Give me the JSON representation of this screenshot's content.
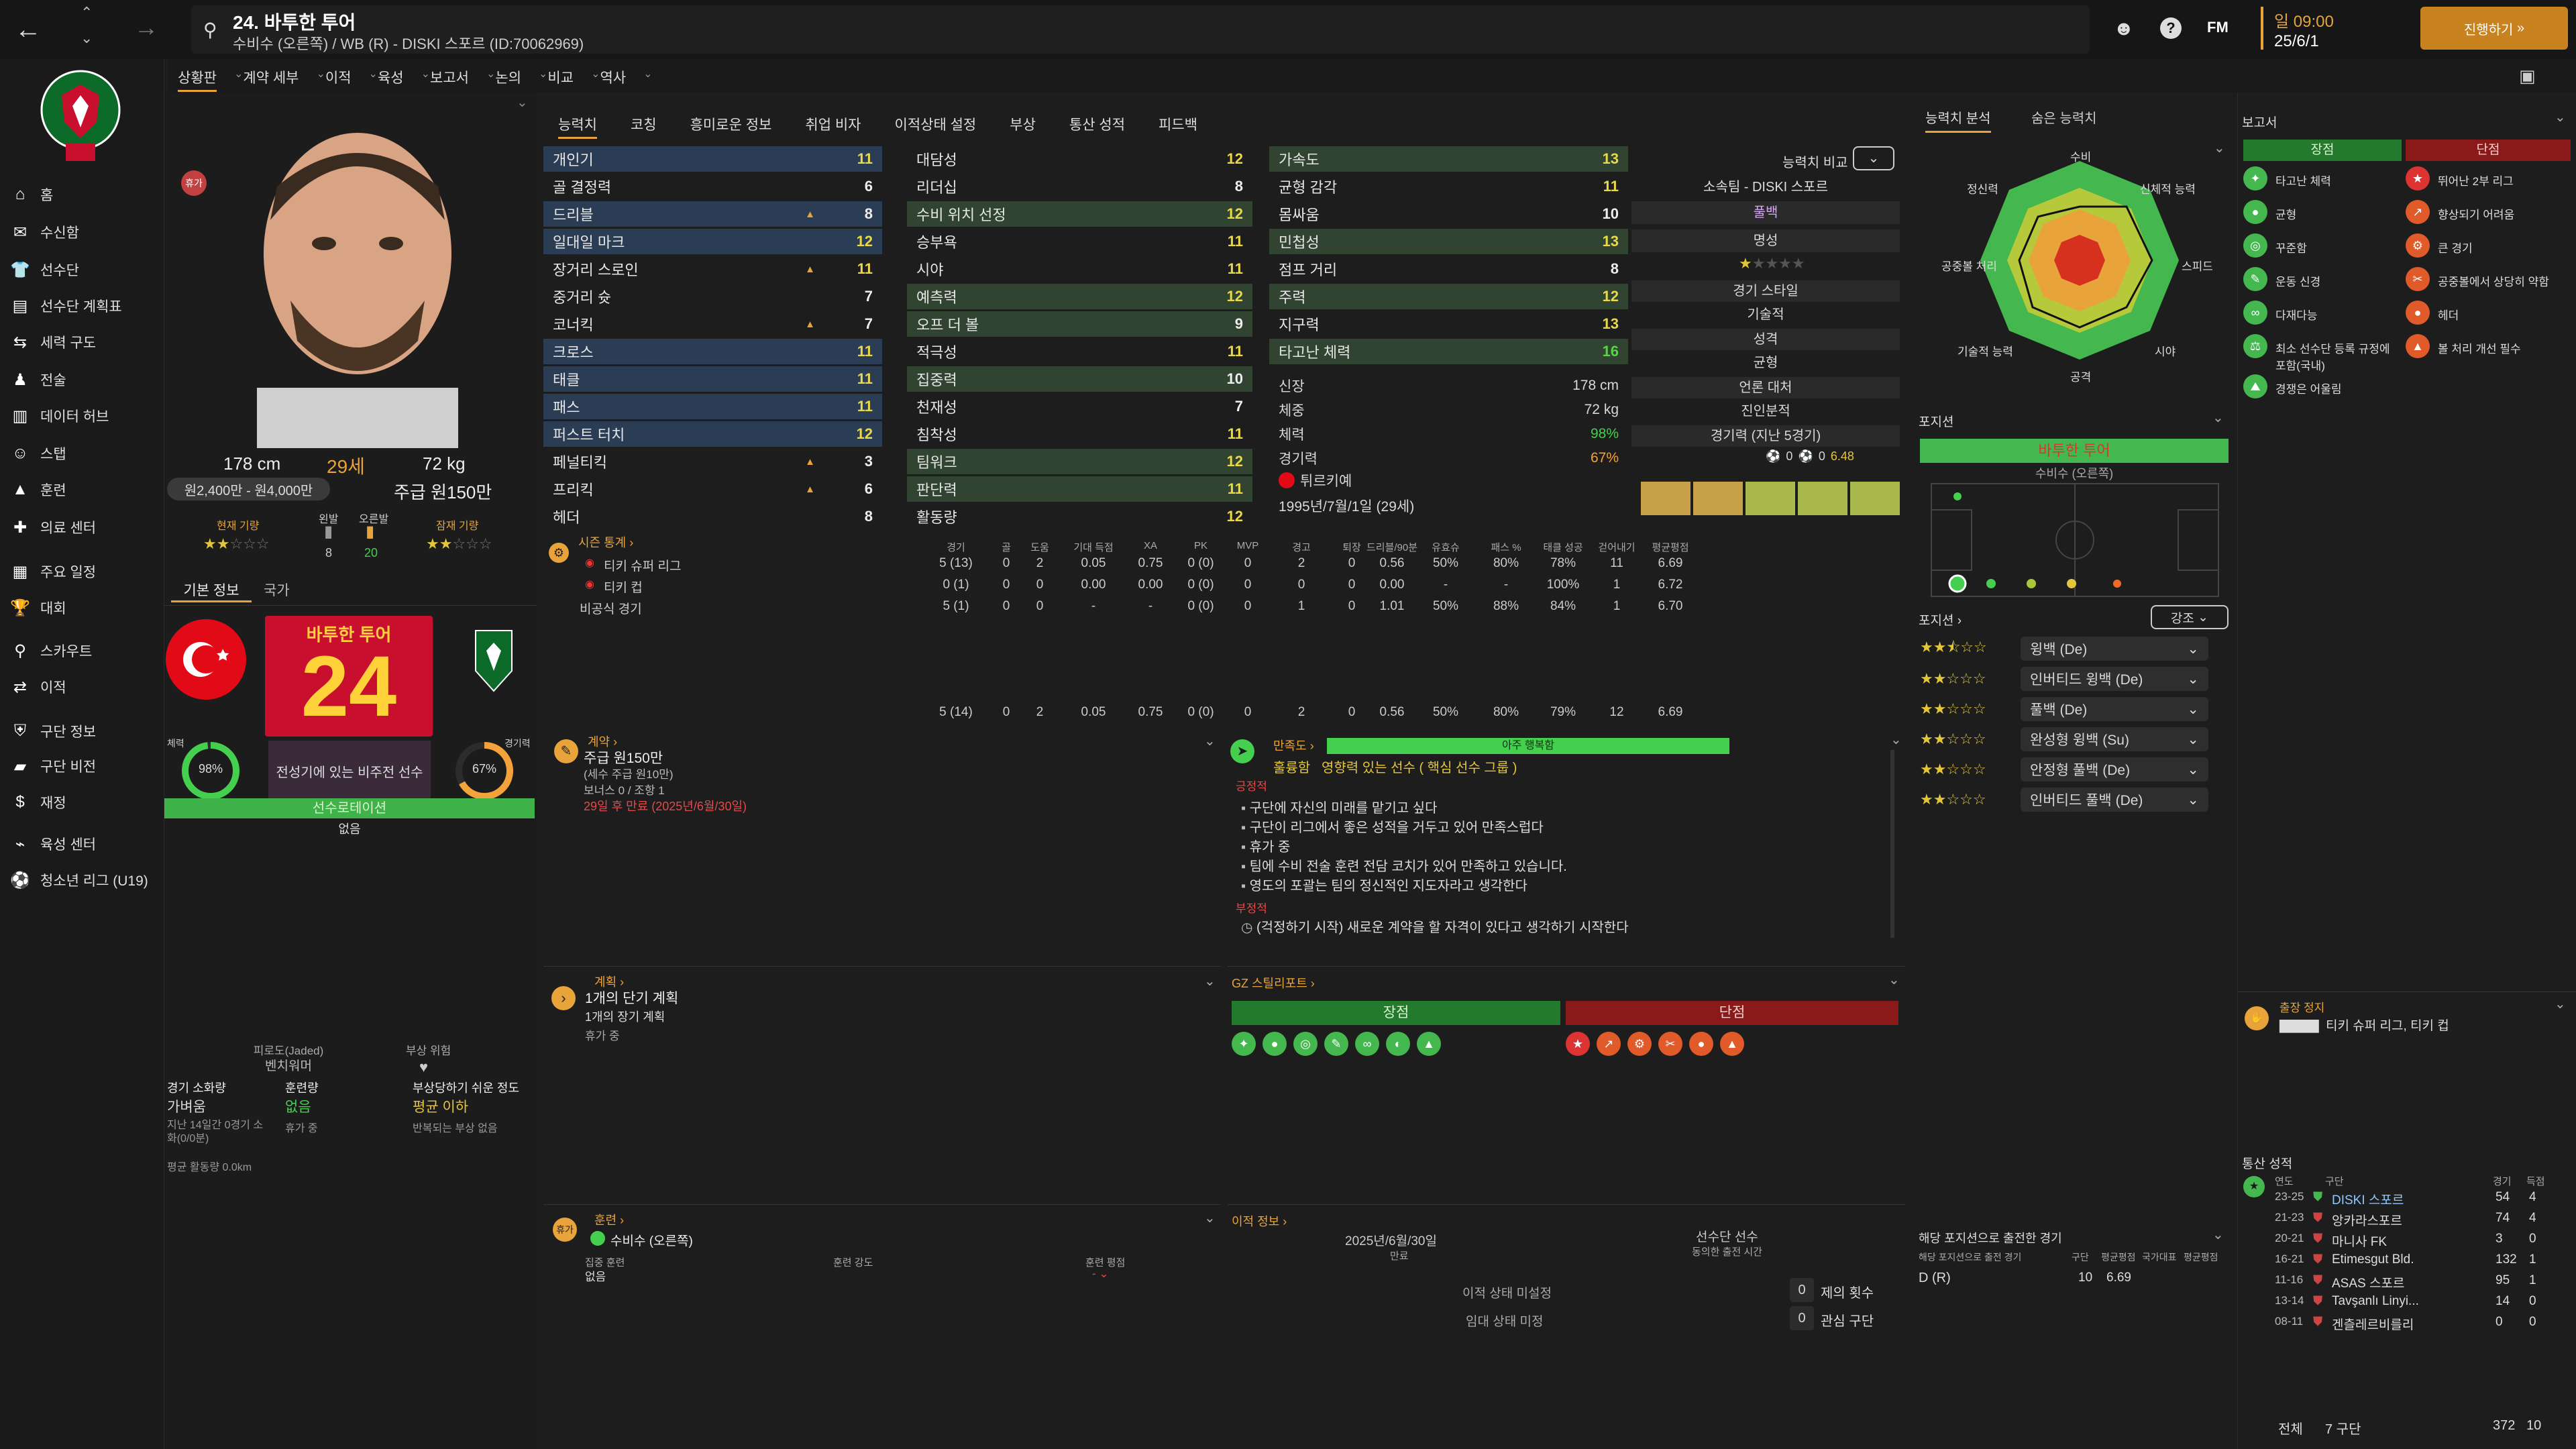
{
  "header": {
    "title": "24. 바투한 투어",
    "subtitle": "수비수 (오른쪽) / WB (R) - DISKI 스포르 (ID:70062969)",
    "time": "일 09:00",
    "date": "25/6/1",
    "continue_label": "진행하기"
  },
  "nav_tabs": [
    "상황판",
    "계약 세부",
    "이적",
    "육성",
    "보고서",
    "논의",
    "비교",
    "역사"
  ],
  "sidebar": [
    "홈",
    "수신함",
    "선수단",
    "선수단 계획표",
    "세력 구도",
    "전술",
    "데이터 허브",
    "스탭",
    "훈련",
    "의료 센터",
    "주요 일정",
    "대회",
    "스카우트",
    "이적",
    "구단 정보",
    "구단 비전",
    "재정",
    "육성 센터",
    "청소년 리그 (U19)"
  ],
  "profile": {
    "height": "178 cm",
    "age": "29세",
    "weight": "72 kg",
    "value": "원2,400만 - 원4,000만",
    "wage": "주급 원150만",
    "current_ability_label": "현재 기량",
    "potential_label": "잠재 기량",
    "left_foot_label": "왼발",
    "right_foot_label": "오른발",
    "left_foot": "8",
    "right_foot": "20",
    "status_badge": "휴가",
    "tab_basic": "기본 정보",
    "tab_nation": "국가",
    "name_card": "바투한 투어",
    "number": "24",
    "fitness_label": "체력",
    "fitness": "98%",
    "match_label": "경기력",
    "match": "67%",
    "role_text": "전성기에 있는 비주전 선수",
    "squad_status": "선수로테이션",
    "squad_status_sub": "없음",
    "fatigue_label": "피로도(Jaded)",
    "fatigue": "벤치워머",
    "injury_risk_label": "부상 위험",
    "load_label": "경기 소화량",
    "load": "가벼움",
    "training_label": "훈련량",
    "training": "없음",
    "injury_label": "부상당하기 쉬운 정도",
    "injury": "평균 이하",
    "note1": "지난 14일간 0경기 소화(0/0분)",
    "note2": "휴가 중",
    "note3": "반복되는 부상 없음",
    "avg_dist": "평균 활동량 0.0km"
  },
  "attr_tabs": [
    "능력치",
    "코칭",
    "흥미로운 정보",
    "취업 비자",
    "이적상태 설정",
    "부상",
    "통산 성적",
    "피드백"
  ],
  "tech": [
    [
      "개인기",
      "11"
    ],
    [
      "골 결정력",
      "6"
    ],
    [
      "드리블",
      "8"
    ],
    [
      "일대일 마크",
      "12"
    ],
    [
      "장거리 스로인",
      "11"
    ],
    [
      "중거리 슛",
      "7"
    ],
    [
      "코너킥",
      "7"
    ],
    [
      "크로스",
      "11"
    ],
    [
      "태클",
      "11"
    ],
    [
      "패스",
      "11"
    ],
    [
      "퍼스트 터치",
      "12"
    ],
    [
      "페널티킥",
      "3"
    ],
    [
      "프리킥",
      "6"
    ],
    [
      "헤더",
      "8"
    ]
  ],
  "mental": [
    [
      "대담성",
      "12"
    ],
    [
      "리더십",
      "8"
    ],
    [
      "수비 위치 선정",
      "12"
    ],
    [
      "승부욕",
      "11"
    ],
    [
      "시야",
      "11"
    ],
    [
      "예측력",
      "12"
    ],
    [
      "오프 더 볼",
      "9"
    ],
    [
      "적극성",
      "11"
    ],
    [
      "집중력",
      "10"
    ],
    [
      "천재성",
      "7"
    ],
    [
      "침착성",
      "11"
    ],
    [
      "팀워크",
      "12"
    ],
    [
      "판단력",
      "11"
    ],
    [
      "활동량",
      "12"
    ]
  ],
  "physical": [
    [
      "가속도",
      "13"
    ],
    [
      "균형 감각",
      "11"
    ],
    [
      "몸싸움",
      "10"
    ],
    [
      "민첩성",
      "13"
    ],
    [
      "점프 거리",
      "8"
    ],
    [
      "주력",
      "12"
    ],
    [
      "지구력",
      "13"
    ],
    [
      "타고난 체력",
      "16"
    ]
  ],
  "bio": {
    "height_label": "신장",
    "height": "178 cm",
    "weight_label": "체중",
    "weight": "72 kg",
    "fitness_label": "체력",
    "fitness": "98%",
    "match_label": "경기력",
    "match": "67%",
    "nation": "튀르키예",
    "birth": "1995년/7월/1일 (29세)"
  },
  "compare": {
    "label": "능력치 비교",
    "club": "소속팀 - DISKI 스포르",
    "position": "풀백",
    "fame_label": "명성",
    "style_label": "경기 스타일",
    "style": "기술적",
    "personality_label": "성격",
    "personality": "균형",
    "media_label": "언론 대처",
    "media": "진인분적",
    "form_label": "경기력 (지난 5경기)",
    "goals": "0",
    "assists": "0",
    "rating": "6.48"
  },
  "season": {
    "label": "시즌 통계",
    "headers": [
      "경기",
      "골",
      "도움",
      "기대 득점",
      "XA",
      "PK",
      "MVP",
      "경고",
      "퇴장",
      "드리블/90분",
      "유효슈",
      "패스 %",
      "태클 성공",
      "걷어내기",
      "평균평점"
    ],
    "rows": [
      [
        "티키 슈퍼 리그",
        "5 (13)",
        "0",
        "2",
        "0.05",
        "0.75",
        "0 (0)",
        "0",
        "2",
        "0",
        "0.56",
        "50%",
        "80%",
        "78%",
        "11",
        "6.69"
      ],
      [
        "티키 컵",
        "0 (1)",
        "0",
        "0",
        "0.00",
        "0.00",
        "0 (0)",
        "0",
        "0",
        "0",
        "0.00",
        "-",
        "-",
        "100%",
        "1",
        "6.72"
      ],
      [
        "비공식 경기",
        "5 (1)",
        "0",
        "0",
        "-",
        "-",
        "0 (0)",
        "0",
        "1",
        "0",
        "1.01",
        "50%",
        "88%",
        "84%",
        "1",
        "6.70"
      ]
    ],
    "total": [
      "5 (14)",
      "0",
      "2",
      "0.05",
      "0.75",
      "0 (0)",
      "0",
      "2",
      "0",
      "0.56",
      "50%",
      "80%",
      "79%",
      "12",
      "6.69"
    ]
  },
  "contract": {
    "label": "계약",
    "wage": "주급 원150만",
    "wage_sub": "(세수 주급 원10만)",
    "bonus": "보너스 0 / 조항 1",
    "expiry": "29일 후 만료 (2025년/6월/30일)"
  },
  "morale": {
    "label": "만족도",
    "level": "아주 행복함",
    "desc": "훌륭함",
    "desc2": "영향력 있는 선수 ( 핵심 선수 그룹 )",
    "pos_label": "긍정적",
    "pos": [
      "구단에 자신의 미래를 맡기고 싶다",
      "구단이 리그에서 좋은 성적을 거두고 있어 만족스럽다",
      "휴가 중",
      "팀에 수비 전술 훈련 전담 코치가 있어 만족하고 있습니다.",
      "영도의 포괄는 팀의 정신적인 지도자라고 생각한다"
    ],
    "neg_label": "부정적",
    "neg": [
      "(걱정하기 시작) 새로운 계약을 할 자격이 있다고 생각하기 시작한다"
    ]
  },
  "plans": {
    "label": "계획",
    "short": "1개의 단기 계획",
    "long": "1개의 장기 계획",
    "note": "휴가 중"
  },
  "gz": {
    "label": "GZ 스틸리포트",
    "pro": "장점",
    "con": "단점"
  },
  "training_panel": {
    "label": "훈련",
    "role": "수비수 (오른쪽)",
    "c1": "집중 훈련",
    "c1v": "없음",
    "c2": "훈련 강도",
    "c3": "훈련 평점"
  },
  "transfer": {
    "label": "이적 정보",
    "date": "2025년/6월/30일",
    "date_label": "만료",
    "status_label": "선수단 선수",
    "status_sub": "동의한 출전 시간",
    "row1": "이적 상태 미설정",
    "row2": "임대 상태 미정",
    "offers": "제의 횟수",
    "interest": "관심 구단",
    "offers_val": "0",
    "interest_val": "0"
  },
  "radar": {
    "tab1": "능력치 분석",
    "tab2": "숨은 능력치",
    "labels": [
      "수비",
      "신체적 능력",
      "스피드",
      "시야",
      "공격",
      "기술적 능력",
      "공중볼 처리",
      "정신력"
    ]
  },
  "positions": {
    "label": "포지션",
    "player": "바투한 투어",
    "player_sub": "수비수 (오른쪽)",
    "roles_label": "포지션",
    "highlight": "강조",
    "roles": [
      [
        "윙백 (De)",
        2.5
      ],
      [
        "인버티드 윙백 (De)",
        2
      ],
      [
        "풀백 (De)",
        2
      ],
      [
        "완성형 윙백 (Su)",
        2
      ],
      [
        "안정형 풀백 (De)",
        2
      ],
      [
        "인버티드 풀백 (De)",
        2
      ]
    ]
  },
  "report": {
    "label": "보고서",
    "pro_label": "장점",
    "con_label": "단점",
    "pros": [
      "타고난 체력",
      "균형",
      "꾸준함",
      "운동 신경",
      "다재다능",
      "최소 선수단 등록 규정에 포함(국내)",
      "경쟁은 어울림"
    ],
    "cons": [
      "뛰어난 2부 리그",
      "향상되기 어려움",
      "큰 경기",
      "공중볼에서 상당히 약함",
      "헤더",
      "볼 처리 개선 필수"
    ]
  },
  "apps": {
    "label": "해당 포지션으로 출전한 경기",
    "sub": "해당 포지션으로 출전 경기",
    "h1": "구단",
    "h2": "평균평점",
    "h3": "국가대표",
    "h4": "평균평점",
    "pos": "D (R)",
    "games": "10",
    "avg": "6.69"
  },
  "suspend": {
    "label": "출장 정지",
    "text": "티키 슈퍼 리그, 티키 컵"
  },
  "career": {
    "label": "통산 성적",
    "headers": [
      "연도",
      "구단",
      "경기",
      "득점"
    ],
    "rows": [
      [
        "23-25",
        "DISKI 스포르",
        "54",
        "4"
      ],
      [
        "21-23",
        "앙카라스포르",
        "74",
        "4"
      ],
      [
        "20-21",
        "마니사 FK",
        "3",
        "0"
      ],
      [
        "16-21",
        "Etimesgut Bld.",
        "132",
        "1"
      ],
      [
        "11-16",
        "ASAS 스포르",
        "95",
        "1"
      ],
      [
        "13-14",
        "Tavşanlı Linyi...",
        "14",
        "0"
      ],
      [
        "08-11",
        "겐츨레르비를리",
        "0",
        "0"
      ]
    ],
    "total_label": "전체",
    "total_clubs": "7 구단",
    "total_games": "372",
    "total_goals": "10"
  },
  "colors": {
    "green": "#44d04e",
    "orange": "#f4a23a",
    "red": "#cf2a2a",
    "accent": "#e8a33b"
  }
}
